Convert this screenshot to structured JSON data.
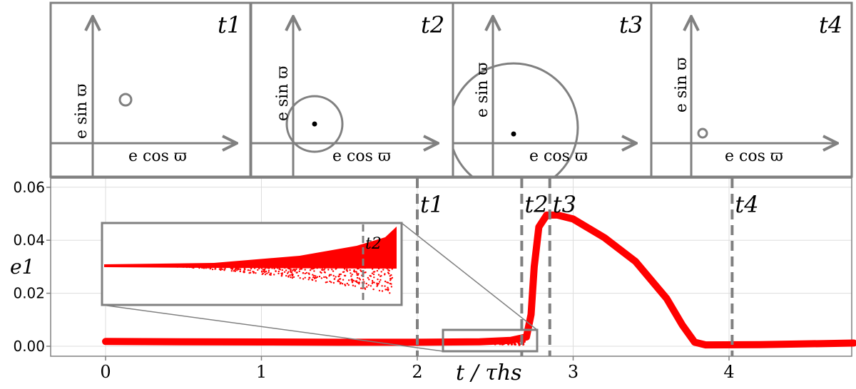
{
  "chart_data": [
    {
      "type": "scatter",
      "role": "main",
      "xlabel": "t / τhs",
      "ylabel": "e1",
      "xlim": [
        -0.35,
        4.8
      ],
      "ylim": [
        -0.002,
        0.062
      ],
      "xticks": [
        "0",
        "1",
        "2",
        "3",
        "4"
      ],
      "yticks": [
        "0.00",
        "0.02",
        "0.04",
        "0.06"
      ],
      "grid": true,
      "series_color": "#ff0000",
      "curve": [
        [
          0.0,
          0.0018
        ],
        [
          0.5,
          0.0017
        ],
        [
          1.0,
          0.0016
        ],
        [
          1.5,
          0.0015
        ],
        [
          2.0,
          0.0015
        ],
        [
          2.4,
          0.0017
        ],
        [
          2.6,
          0.0022
        ],
        [
          2.7,
          0.0035
        ],
        [
          2.73,
          0.012
        ],
        [
          2.75,
          0.03
        ],
        [
          2.78,
          0.045
        ],
        [
          2.83,
          0.0495
        ],
        [
          2.9,
          0.0495
        ],
        [
          3.0,
          0.048
        ],
        [
          3.2,
          0.041
        ],
        [
          3.4,
          0.032
        ],
        [
          3.6,
          0.018
        ],
        [
          3.7,
          0.008
        ],
        [
          3.78,
          0.0015
        ],
        [
          3.85,
          0.0005
        ],
        [
          4.2,
          0.0006
        ],
        [
          4.8,
          0.0012
        ]
      ],
      "event_lines": [
        {
          "label": "t1",
          "x": 2.0
        },
        {
          "label": "t2",
          "x": 2.67
        },
        {
          "label": "t3",
          "x": 2.85
        },
        {
          "label": "t4",
          "x": 4.02
        }
      ]
    },
    {
      "type": "scatter",
      "role": "inset",
      "xlim": [
        2.15,
        2.75
      ],
      "series_color": "#ff0000",
      "event_line_label": "t2",
      "event_line_x": 2.67
    }
  ],
  "phase_panels": [
    {
      "time_label": "t1",
      "xlabel": "e cos ϖ",
      "ylabel": "e sin ϖ",
      "circle_radius": "small",
      "center_dot": false
    },
    {
      "time_label": "t2",
      "xlabel": "e cos ϖ",
      "ylabel": "e sin ϖ",
      "circle_radius": "medium",
      "center_dot": true
    },
    {
      "time_label": "t3",
      "xlabel": "e cos ϖ",
      "ylabel": "e sin ϖ",
      "circle_radius": "large",
      "center_dot": true
    },
    {
      "time_label": "t4",
      "xlabel": "e cos ϖ",
      "ylabel": "e sin ϖ",
      "circle_radius": "small",
      "center_dot": false
    }
  ],
  "colors": {
    "frame": "#808080",
    "data": "#ff0000",
    "grid": "#dddddd",
    "axis": "#808080"
  }
}
